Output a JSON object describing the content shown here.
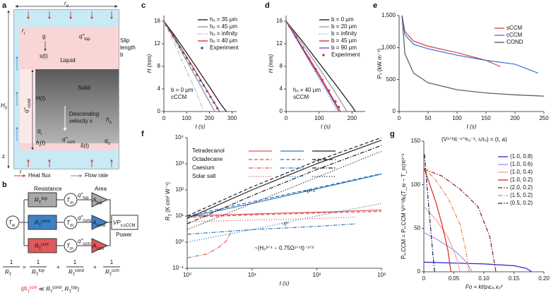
{
  "panel_labels": [
    "a",
    "b",
    "c",
    "d",
    "e",
    "f",
    "g"
  ],
  "diagram_a": {
    "r_o": {
      "base": "r",
      "sub": "o"
    },
    "r_i": {
      "base": "r",
      "sub": "i"
    },
    "g": "g",
    "s_t": "s(t)",
    "q_top": {
      "base": "q″",
      "sub": "top"
    },
    "liquid": "Liquid",
    "slip": [
      "Slip",
      "length",
      "b"
    ],
    "H0": {
      "base": "H",
      "sub": "0"
    },
    "H_t": "H(t)",
    "solid": "Solid",
    "h_o": {
      "base": "h",
      "sub": "o"
    },
    "descending": [
      "Descending",
      "velocity v"
    ],
    "q_cond": {
      "base": "q″",
      "sub": "cond"
    },
    "q_i": {
      "base": "q",
      "sub": "i"
    },
    "h_i": {
      "base": "h",
      "sub": "i",
      "tail": "(t)"
    },
    "q_ccm": {
      "base": "q″",
      "sub": "ccm"
    },
    "delta": "δ(t)",
    "q_o": {
      "base": "q",
      "sub": "o"
    },
    "z": "z",
    "r": "r",
    "heat_flux": "Heat flux",
    "flow_rate": "Flow rate"
  },
  "diagram_b": {
    "resistance": "Resistance",
    "area": "Area",
    "T_w": {
      "base": "T",
      "sub": "w"
    },
    "T_m": {
      "base": "T",
      "sub": "m"
    },
    "resistors": [
      {
        "label": {
          "base": "R",
          "sub": "T",
          "sup": "top"
        },
        "flux": {
          "base": "q″",
          "sub": "top"
        },
        "area": {
          "base": "A",
          "sub": "top"
        },
        "color": "#a9a9a9"
      },
      {
        "label": {
          "base": "R",
          "sub": "T",
          "sup": "cond"
        },
        "flux": {
          "base": "q″",
          "sub": "cond"
        },
        "area": {
          "base": "A",
          "sub": "cond"
        },
        "color": "#3d82c8"
      },
      {
        "label": {
          "base": "R",
          "sub": "T",
          "sup": "ccm"
        },
        "flux": {
          "base": "q″",
          "sub": "ccm"
        },
        "area": {
          "base": "A",
          "sub": "ccm"
        },
        "color": "#e0585a"
      }
    ],
    "output": {
      "base": "VP",
      "sub": "v,sCCM"
    },
    "power": "Power",
    "equation": {
      "numerator": "1",
      "lhs": {
        "base": "R",
        "sub": "T"
      },
      "equals": "=",
      "plus": "+"
    },
    "condition": {
      "open": "(",
      "rel": " ≪ ",
      "sep": ", ",
      "close": ")"
    }
  },
  "chart_data": [
    {
      "type": "line",
      "xlabel": "t (s)",
      "ylabel": "H (mm)",
      "xlim": [
        0,
        320
      ],
      "ylim": [
        0,
        17
      ],
      "xticks": [
        0,
        100,
        200,
        300
      ],
      "yticks": [
        0,
        4,
        8,
        12,
        16
      ],
      "annotations": [
        "b = 0 μm",
        "cCCM"
      ],
      "series": [
        {
          "name": "hₒ = 35 μm",
          "color": "#111111",
          "dash": "solid",
          "x": [
            0,
            50,
            100,
            150,
            200,
            250,
            275
          ],
          "values": [
            16,
            13.3,
            10.4,
            7.4,
            4.4,
            1.3,
            0
          ]
        },
        {
          "name": "hₒ = 45 μm",
          "color": "#8c8c8c",
          "dash": "solid",
          "x": [
            0,
            50,
            100,
            150,
            200,
            225
          ],
          "values": [
            16,
            12.6,
            9,
            5.4,
            1.7,
            0
          ]
        },
        {
          "name": "hₒ = infinity",
          "color": "#bdbdbd",
          "dash": "dashdot",
          "x": [
            0,
            50,
            100,
            150,
            175
          ],
          "values": [
            16,
            11.7,
            7.2,
            2.7,
            0
          ]
        },
        {
          "name": "hₒ = 40 μm",
          "color": "#d62728",
          "dash": "solid",
          "x": [
            0,
            50,
            100,
            150,
            200,
            245
          ],
          "values": [
            16,
            12.9,
            9.7,
            6.4,
            3,
            0
          ]
        },
        {
          "name": "Experiment",
          "color": "#2a5caa",
          "style": "dots",
          "x": [
            10,
            25,
            40,
            55,
            70,
            85,
            100,
            115,
            130,
            145,
            160,
            175,
            190,
            205,
            220,
            235
          ],
          "values": [
            15.3,
            14.4,
            13.4,
            12.4,
            11.4,
            10.4,
            9.5,
            8.5,
            7.5,
            6.5,
            5.5,
            4.6,
            3.6,
            2.6,
            1.6,
            0.6
          ]
        }
      ]
    },
    {
      "type": "line",
      "xlabel": "t (s)",
      "ylabel": "H (mm)",
      "xlim": [
        0,
        240
      ],
      "ylim": [
        0,
        17
      ],
      "xticks": [
        0,
        100,
        200
      ],
      "yticks": [
        0,
        4,
        8,
        12,
        16
      ],
      "annotations": [
        "hₒ = 40 μm",
        "sCCM"
      ],
      "series": [
        {
          "name": "b = 0 μm",
          "color": "#111111",
          "dash": "solid",
          "x": [
            0,
            50,
            100,
            150,
            200,
            210
          ],
          "values": [
            16,
            12.4,
            8.6,
            4.8,
            0.9,
            0
          ]
        },
        {
          "name": "b = 20 μm",
          "color": "#999999",
          "dash": "solid",
          "x": [
            0,
            50,
            100,
            150,
            185
          ],
          "values": [
            16,
            11.9,
            7.7,
            3.3,
            0
          ]
        },
        {
          "name": "b = infinity",
          "color": "#4a8fd0",
          "dash": "dotted",
          "x": [
            0,
            50,
            100,
            140,
            155
          ],
          "values": [
            16,
            10.9,
            5.8,
            1.7,
            0
          ]
        },
        {
          "name": "b = 45 μm",
          "color": "#d62728",
          "dash": "solid",
          "x": [
            0,
            50,
            100,
            150,
            165
          ],
          "values": [
            16,
            11.3,
            6.6,
            1.5,
            0
          ]
        },
        {
          "name": "b = 90 μm",
          "color": "#7b3fa0",
          "dash": "solid",
          "x": [
            0,
            50,
            100,
            150,
            160
          ],
          "values": [
            16,
            11.1,
            6.2,
            1.2,
            0
          ]
        },
        {
          "name": "Experiment",
          "color": "#c0306a",
          "style": "dots",
          "x": [
            10,
            30,
            50,
            70,
            90,
            110,
            130,
            150,
            160
          ],
          "values": [
            15.1,
            13.2,
            11.3,
            9.4,
            7.5,
            5.6,
            3.7,
            1.8,
            0.8
          ]
        }
      ]
    },
    {
      "type": "line",
      "xlabel": "t (s)",
      "ylabel": "Pᵥ (kW m⁻³)",
      "xlim": [
        0,
        250
      ],
      "ylim": [
        0,
        1500
      ],
      "xticks": [
        0,
        50,
        100,
        150,
        200,
        250
      ],
      "yticks": [
        0,
        500,
        {
          "value": 1000,
          "label": "1,000"
        },
        {
          "value": 1500,
          "label": "1,500"
        }
      ],
      "series": [
        {
          "name": "sCCM",
          "color": "#d94040",
          "dash": "solid",
          "x": [
            5,
            10,
            25,
            50,
            100,
            150,
            175
          ],
          "values": [
            1500,
            1250,
            1100,
            1020,
            920,
            800,
            700
          ]
        },
        {
          "name": "cCCM",
          "color": "#3d6fc8",
          "dash": "solid",
          "x": [
            5,
            10,
            25,
            50,
            100,
            150,
            200,
            240
          ],
          "values": [
            1500,
            1200,
            1050,
            980,
            880,
            800,
            740,
            600
          ]
        },
        {
          "name": "COND",
          "color": "#555555",
          "dash": "solid",
          "x": [
            5,
            10,
            25,
            50,
            100,
            150,
            200,
            250
          ],
          "values": [
            1500,
            900,
            600,
            450,
            340,
            290,
            260,
            240
          ]
        }
      ]
    },
    {
      "type": "line",
      "xscale": "log",
      "yscale": "log",
      "xlabel": "t (s)",
      "ylabel": {
        "base": "R",
        "sub": "T",
        "tail": " (K cm² W⁻¹)"
      },
      "xlim": [
        1,
        1000
      ],
      "ylim": [
        0.1,
        10000
      ],
      "xticks": [
        {
          "value": 1,
          "label": "10⁰"
        },
        {
          "value": 10,
          "label": "10¹"
        },
        {
          "value": 100,
          "label": "10²"
        },
        {
          "value": 1000,
          "label": "10³"
        }
      ],
      "yticks": [
        {
          "value": 0.1,
          "label": "10⁻¹"
        },
        {
          "value": 1,
          "label": "10⁰"
        },
        {
          "value": 10,
          "label": "10¹"
        },
        {
          "value": 100,
          "label": "10²"
        },
        {
          "value": 1000,
          "label": "10³"
        },
        {
          "value": 10000,
          "label": "10⁴"
        }
      ],
      "annotations": [
        "~t⁴ᐟ³",
        "~t¹ᐟ²",
        "~t⁰",
        "~(H₀³ᐟ⁴ − 0.75Ω¹ᐟ⁴t)⁻¹ᐟ³"
      ],
      "columns": [
        {
          "label": {
            "base": "R",
            "sub": "T",
            "sup": "ccm"
          },
          "color": "#e0585a"
        },
        {
          "label": {
            "base": "R",
            "sub": "T",
            "sup": "cond"
          },
          "color": "#2f78bd"
        },
        {
          "label": {
            "base": "R",
            "sub": "T",
            "sup": "top"
          },
          "color": "#222222"
        }
      ],
      "series": [
        {
          "name": "Tetradecanol",
          "dash": "solid",
          "lines": [
            {
              "x": [
                1,
                10,
                100,
                1000
              ],
              "values": [
                10,
                12,
                14,
                17
              ]
            },
            {
              "x": [
                1,
                10,
                100,
                1000
              ],
              "values": [
                9,
                30,
                110,
                400
              ]
            },
            {
              "x": [
                1,
                10,
                100,
                1000
              ],
              "values": [
                8,
                100,
                1000,
                8000
              ]
            }
          ]
        },
        {
          "name": "Octadecane",
          "dash": "dashed",
          "lines": [
            {
              "x": [
                1,
                10,
                100,
                1000
              ],
              "values": [
                9,
                11,
                13,
                15
              ]
            },
            {
              "x": [
                1,
                10,
                100,
                1000
              ],
              "values": [
                10,
                35,
                120,
                420
              ]
            },
            {
              "x": [
                1,
                10,
                100,
                1000
              ],
              "values": [
                10,
                130,
                1300,
                10000
              ]
            }
          ]
        },
        {
          "name": "Caesium",
          "dash": "dashdot",
          "lines": [
            {
              "x": [
                1,
                2,
                3,
                4,
                5
              ],
              "values": [
                0.25,
                0.35,
                0.6,
                1.1,
                3
              ]
            },
            {
              "x": [
                1,
                10,
                100,
                400
              ],
              "values": [
                2,
                3,
                4,
                5
              ]
            },
            {
              "x": [
                1,
                10,
                100,
                1000
              ],
              "values": [
                5,
                60,
                600,
                5000
              ]
            }
          ]
        },
        {
          "name": "Solar salt",
          "dash": "dotted",
          "lines": [
            {
              "x": [
                1,
                10,
                100,
                400
              ],
              "values": [
                6,
                7,
                8,
                9
              ]
            },
            {
              "x": [
                1,
                10,
                100,
                1000
              ],
              "values": [
                1,
                3,
                10,
                30
              ]
            },
            {
              "x": [
                1,
                10,
                100,
                1000
              ],
              "values": [
                3,
                30,
                300,
                3000
              ]
            }
          ]
        }
      ]
    },
    {
      "type": "line",
      "xlabel": "Fo = kt/ρₗcₚ,ₗrₒ²",
      "ylabel": "P̄ᵥ,CCM = Pᵥ,CCM V²ᐟ³/kₗ(T_w − T_m)π²ᐟ³",
      "legend_title": "(V¹ᐟ³π⁻¹ᐟ³rₒ⁻¹, rᵢ/rₒ) = (ℓ, a)",
      "xlim": [
        0,
        0.2
      ],
      "ylim": [
        0,
        150
      ],
      "xticks": [
        0,
        {
          "value": 0.05,
          "label": "0.05"
        },
        {
          "value": 0.1,
          "label": "0.10"
        },
        {
          "value": 0.15,
          "label": "0.15"
        },
        {
          "value": 0.2,
          "label": "0.20"
        }
      ],
      "yticks": [
        0,
        50,
        100,
        150
      ],
      "series": [
        {
          "name": "(1.0, 0.8)",
          "color": "#2222d0",
          "dash": "solid",
          "x": [
            0,
            0.05,
            0.1,
            0.15,
            0.17,
            0.18
          ],
          "values": [
            11,
            10,
            9,
            7,
            4,
            0
          ]
        },
        {
          "name": "(1.0, 0.6)",
          "color": "#a195e6",
          "dash": "solid",
          "x": [
            0,
            0.02,
            0.05,
            0.07,
            0.08
          ],
          "values": [
            45,
            38,
            25,
            12,
            0
          ]
        },
        {
          "name": "(1.0, 0.4)",
          "color": "#f4a0a0",
          "dash": "solid",
          "x": [
            0,
            0.02,
            0.04,
            0.055,
            0.06
          ],
          "values": [
            75,
            60,
            40,
            15,
            0
          ]
        },
        {
          "name": "(1.0, 0.2)",
          "color": "#e02020",
          "dash": "solid",
          "x": [
            0,
            0.01,
            0.02,
            0.03,
            0.04,
            0.045
          ],
          "values": [
            120,
            100,
            80,
            55,
            25,
            0
          ]
        },
        {
          "name": "(2.0, 0.2)",
          "color": "#8b1a1a",
          "dash": "dashdot",
          "x": [
            0,
            0.03,
            0.06,
            0.09,
            0.11,
            0.12
          ],
          "values": [
            118,
            110,
            95,
            75,
            40,
            0
          ]
        },
        {
          "name": "(1.5, 0.2)",
          "color": "#f08040",
          "dash": "dashdot",
          "x": [
            0,
            0.02,
            0.04,
            0.06,
            0.07,
            0.075
          ],
          "values": [
            120,
            105,
            85,
            55,
            25,
            0
          ]
        },
        {
          "name": "(0.5, 0.2)",
          "color": "#202050",
          "dash": "dashdot",
          "x": [
            0.001,
            0.005,
            0.01,
            0.015,
            0.018
          ],
          "values": [
            135,
            100,
            60,
            20,
            0
          ]
        }
      ]
    }
  ]
}
